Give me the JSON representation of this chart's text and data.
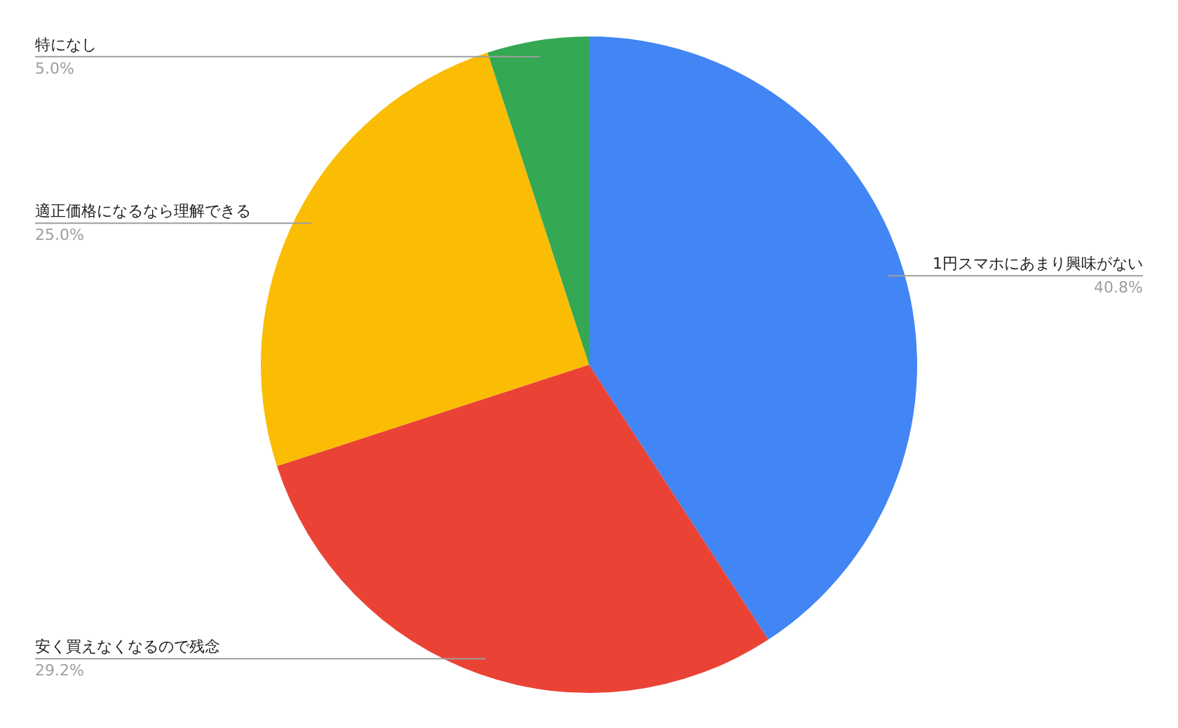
{
  "chart_data": {
    "type": "pie",
    "categories": [
      "1円スマホにあまり興味がない",
      "安く買えなくなるので残念",
      "適正価格になるなら理解できる",
      "特になし"
    ],
    "values": [
      40.8,
      29.2,
      25.0,
      5.0
    ],
    "colors": [
      "#4285f4",
      "#ea4335",
      "#fbbc04",
      "#34a853"
    ],
    "value_labels": [
      "40.8%",
      "29.2%",
      "25.0%",
      "5.0%"
    ]
  }
}
